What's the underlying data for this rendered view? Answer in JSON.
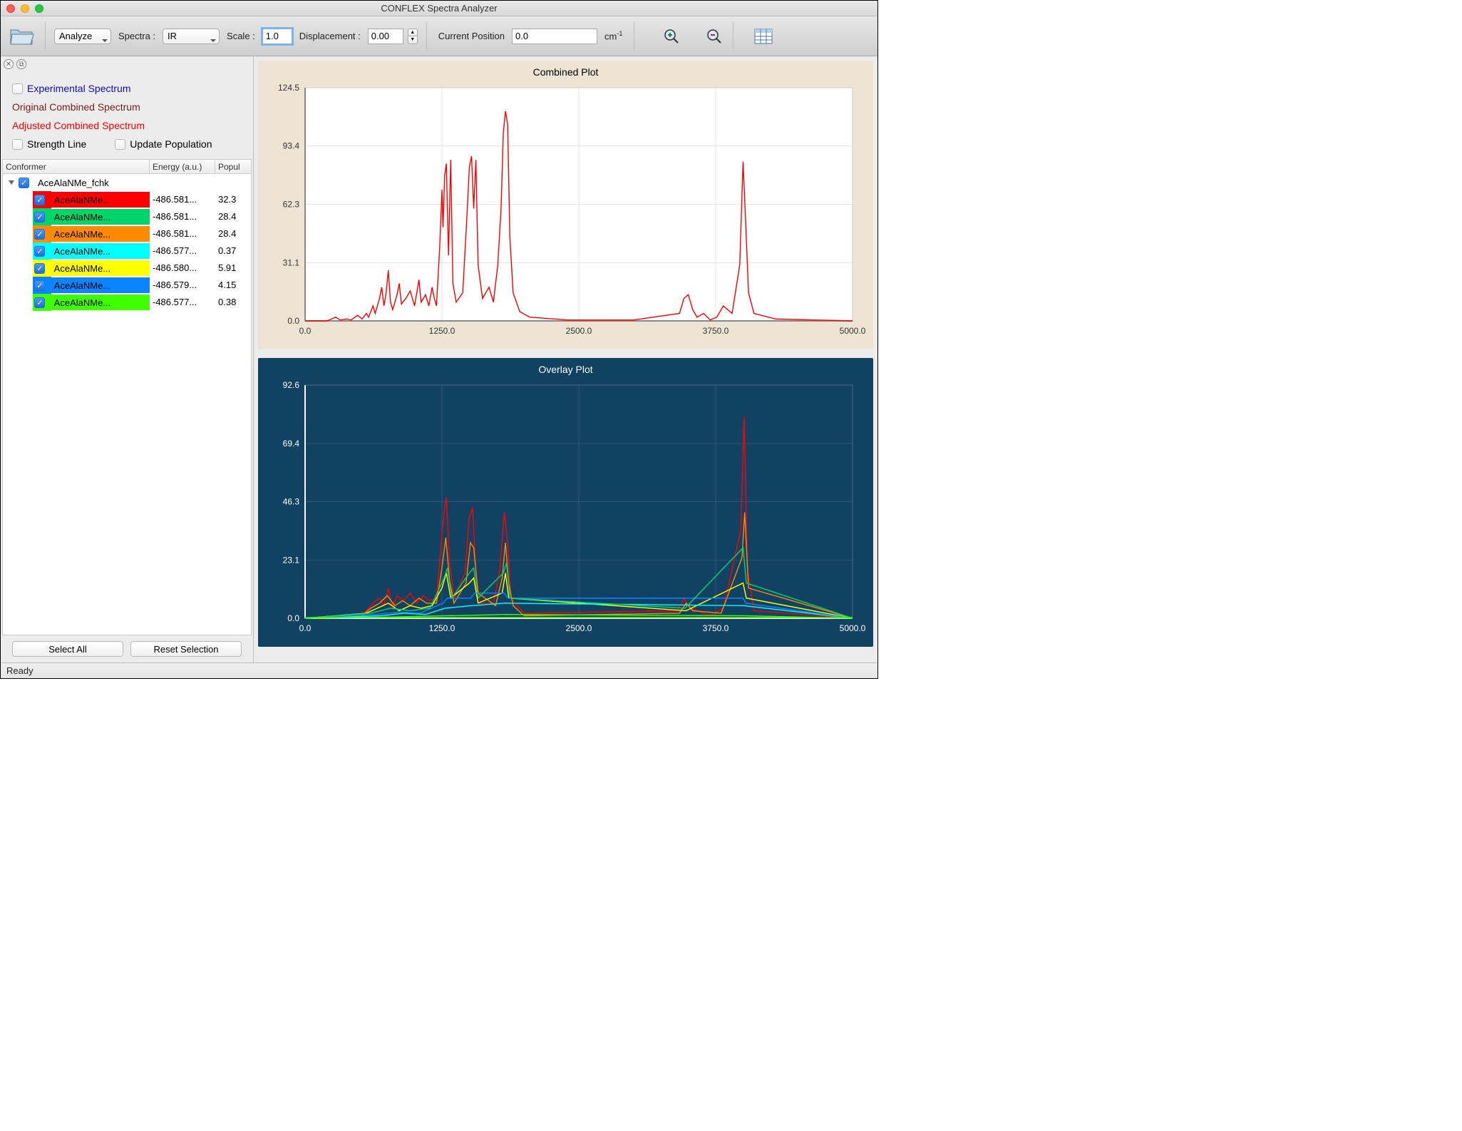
{
  "window": {
    "title": "CONFLEX Spectra Analyzer"
  },
  "toolbar": {
    "analyze_label": "Analyze",
    "spectra_label": "Spectra :",
    "spectra_value": "IR",
    "scale_label": "Scale :",
    "scale_value": "1.0",
    "displacement_label": "Displacement :",
    "displacement_value": "0.00",
    "position_label": "Current Position",
    "position_value": "0.0",
    "unit": "cm",
    "unit_sup": "-1"
  },
  "legend": {
    "experimental": "Experimental Spectrum",
    "original": "Original Combined Spectrum",
    "adjusted": "Adjusted Combined Spectrum",
    "strength_line": "Strength Line",
    "update_population": "Update Population"
  },
  "tree": {
    "header_conformer": "Conformer",
    "header_energy": "Energy (a.u.)",
    "header_pop": "Popul",
    "parent": "AceAlaNMe_fchk",
    "rows": [
      {
        "name": "AceAlaNMe...",
        "energy": "-486.581...",
        "pop": "32.3",
        "color": "#ff0000"
      },
      {
        "name": "AceAlaNMe...",
        "energy": "-486.581...",
        "pop": "28.4",
        "color": "#00d56a"
      },
      {
        "name": "AceAlaNMe...",
        "energy": "-486.581...",
        "pop": "28.4",
        "color": "#ff8900"
      },
      {
        "name": "AceAlaNMe...",
        "energy": "-486.577...",
        "pop": "0.37",
        "color": "#00ffff"
      },
      {
        "name": "AceAlaNMe...",
        "energy": "-486.580...",
        "pop": "5.91",
        "color": "#ffff00"
      },
      {
        "name": "AceAlaNMe...",
        "energy": "-486.579...",
        "pop": "4.15",
        "color": "#0b84ff"
      },
      {
        "name": "AceAlaNMe...",
        "energy": "-486.577...",
        "pop": "0.38",
        "color": "#40ff00"
      }
    ]
  },
  "buttons": {
    "select_all": "Select All",
    "reset_selection": "Reset Selection"
  },
  "status": {
    "text": "Ready"
  },
  "combined_plot": {
    "title": "Combined Plot",
    "type": "line",
    "background_color": "#eee4d4",
    "plot_bg": "#ffffff",
    "grid_color": "#cccccc",
    "axis_color": "#888888",
    "line_color": "#ff0000",
    "xlim": [
      0,
      5000
    ],
    "ylim": [
      0,
      124.5
    ],
    "xticks": [
      0.0,
      1250.0,
      2500.0,
      3750.0,
      5000.0
    ],
    "yticks": [
      0.0,
      31.1,
      62.3,
      93.4,
      124.5
    ],
    "label_fontsize": 12,
    "label_color": "#333333",
    "data": [
      [
        0,
        0
      ],
      [
        200,
        0
      ],
      [
        280,
        2
      ],
      [
        320,
        0.5
      ],
      [
        380,
        1
      ],
      [
        420,
        0.5
      ],
      [
        480,
        3
      ],
      [
        520,
        1
      ],
      [
        560,
        4
      ],
      [
        580,
        2
      ],
      [
        620,
        8
      ],
      [
        640,
        4
      ],
      [
        680,
        12
      ],
      [
        700,
        18
      ],
      [
        720,
        8
      ],
      [
        740,
        15
      ],
      [
        760,
        27
      ],
      [
        780,
        10
      ],
      [
        800,
        6
      ],
      [
        840,
        14
      ],
      [
        860,
        20
      ],
      [
        880,
        9
      ],
      [
        920,
        12
      ],
      [
        960,
        16
      ],
      [
        1000,
        8
      ],
      [
        1040,
        22
      ],
      [
        1060,
        10
      ],
      [
        1100,
        14
      ],
      [
        1130,
        8
      ],
      [
        1160,
        18
      ],
      [
        1180,
        12
      ],
      [
        1200,
        8
      ],
      [
        1230,
        40
      ],
      [
        1250,
        70
      ],
      [
        1260,
        50
      ],
      [
        1275,
        78
      ],
      [
        1290,
        84
      ],
      [
        1310,
        35
      ],
      [
        1330,
        86
      ],
      [
        1350,
        20
      ],
      [
        1380,
        10
      ],
      [
        1440,
        15
      ],
      [
        1480,
        58
      ],
      [
        1500,
        82
      ],
      [
        1520,
        88
      ],
      [
        1540,
        60
      ],
      [
        1560,
        86
      ],
      [
        1580,
        30
      ],
      [
        1620,
        12
      ],
      [
        1680,
        18
      ],
      [
        1720,
        10
      ],
      [
        1760,
        30
      ],
      [
        1790,
        60
      ],
      [
        1810,
        100
      ],
      [
        1830,
        112
      ],
      [
        1850,
        105
      ],
      [
        1870,
        45
      ],
      [
        1900,
        15
      ],
      [
        1960,
        5
      ],
      [
        2050,
        2
      ],
      [
        2400,
        0.5
      ],
      [
        3000,
        0.5
      ],
      [
        3420,
        4
      ],
      [
        3460,
        12
      ],
      [
        3500,
        14
      ],
      [
        3540,
        6
      ],
      [
        3580,
        2
      ],
      [
        3640,
        4
      ],
      [
        3700,
        0.5
      ],
      [
        3760,
        2
      ],
      [
        3820,
        8
      ],
      [
        3900,
        4
      ],
      [
        3970,
        30
      ],
      [
        4000,
        85
      ],
      [
        4020,
        58
      ],
      [
        4050,
        15
      ],
      [
        4100,
        4
      ],
      [
        4300,
        1
      ],
      [
        5000,
        0
      ]
    ]
  },
  "overlay_plot": {
    "title": "Overlay Plot",
    "type": "line",
    "background_color": "#124263",
    "plot_bg": "#124263",
    "grid_color": "#4a6a82",
    "axis_color": "#ffffff",
    "label_color": "#ffffff",
    "xlim": [
      0,
      5000
    ],
    "ylim": [
      0,
      92.6
    ],
    "xticks": [
      0.0,
      1250.0,
      2500.0,
      3750.0,
      5000.0
    ],
    "yticks": [
      0.0,
      23.1,
      46.3,
      69.4,
      92.6
    ],
    "label_fontsize": 12,
    "baseline_color": "#40ff00",
    "series": [
      {
        "color": "#ff0000",
        "data": [
          [
            0,
            0
          ],
          [
            500,
            0.5
          ],
          [
            560,
            3
          ],
          [
            620,
            6
          ],
          [
            680,
            8
          ],
          [
            720,
            5
          ],
          [
            760,
            12
          ],
          [
            800,
            4
          ],
          [
            840,
            9
          ],
          [
            900,
            7
          ],
          [
            960,
            10
          ],
          [
            1020,
            6
          ],
          [
            1080,
            9
          ],
          [
            1140,
            7
          ],
          [
            1200,
            8
          ],
          [
            1240,
            28
          ],
          [
            1270,
            42
          ],
          [
            1290,
            48
          ],
          [
            1320,
            22
          ],
          [
            1360,
            8
          ],
          [
            1460,
            18
          ],
          [
            1500,
            40
          ],
          [
            1530,
            44
          ],
          [
            1560,
            18
          ],
          [
            1600,
            6
          ],
          [
            1720,
            6
          ],
          [
            1780,
            20
          ],
          [
            1820,
            42
          ],
          [
            1850,
            30
          ],
          [
            1880,
            8
          ],
          [
            2000,
            2
          ],
          [
            3400,
            3
          ],
          [
            3460,
            8
          ],
          [
            3520,
            4
          ],
          [
            3700,
            1
          ],
          [
            3820,
            4
          ],
          [
            3980,
            35
          ],
          [
            4010,
            80
          ],
          [
            4040,
            20
          ],
          [
            4100,
            3
          ],
          [
            5000,
            0
          ]
        ]
      },
      {
        "color": "#ff8900",
        "data": [
          [
            0,
            0
          ],
          [
            520,
            1
          ],
          [
            600,
            4
          ],
          [
            680,
            6
          ],
          [
            750,
            9
          ],
          [
            820,
            5
          ],
          [
            890,
            7
          ],
          [
            960,
            5
          ],
          [
            1040,
            8
          ],
          [
            1110,
            6
          ],
          [
            1200,
            6
          ],
          [
            1250,
            20
          ],
          [
            1285,
            32
          ],
          [
            1320,
            15
          ],
          [
            1360,
            6
          ],
          [
            1470,
            14
          ],
          [
            1510,
            30
          ],
          [
            1540,
            28
          ],
          [
            1580,
            10
          ],
          [
            1740,
            5
          ],
          [
            1800,
            16
          ],
          [
            1830,
            30
          ],
          [
            1860,
            14
          ],
          [
            1900,
            5
          ],
          [
            2000,
            1
          ],
          [
            3420,
            2
          ],
          [
            3480,
            6
          ],
          [
            3540,
            3
          ],
          [
            3800,
            2
          ],
          [
            3990,
            24
          ],
          [
            4015,
            42
          ],
          [
            4050,
            12
          ],
          [
            5000,
            0
          ]
        ]
      },
      {
        "color": "#ffff00",
        "data": [
          [
            0,
            0
          ],
          [
            560,
            2
          ],
          [
            660,
            4
          ],
          [
            760,
            6
          ],
          [
            860,
            3
          ],
          [
            960,
            5
          ],
          [
            1060,
            4
          ],
          [
            1160,
            5
          ],
          [
            1250,
            12
          ],
          [
            1290,
            18
          ],
          [
            1330,
            8
          ],
          [
            1500,
            14
          ],
          [
            1540,
            16
          ],
          [
            1580,
            6
          ],
          [
            1800,
            10
          ],
          [
            1830,
            18
          ],
          [
            1860,
            8
          ],
          [
            3480,
            3
          ],
          [
            4000,
            14
          ],
          [
            4030,
            8
          ],
          [
            5000,
            0
          ]
        ]
      },
      {
        "color": "#00ffff",
        "data": [
          [
            0,
            0
          ],
          [
            700,
            1
          ],
          [
            900,
            2
          ],
          [
            1100,
            1.5
          ],
          [
            1280,
            4
          ],
          [
            1520,
            5
          ],
          [
            1820,
            6
          ],
          [
            4005,
            5
          ],
          [
            5000,
            0
          ]
        ]
      },
      {
        "color": "#0b84ff",
        "data": [
          [
            0,
            0
          ],
          [
            650,
            1.5
          ],
          [
            850,
            2.5
          ],
          [
            1050,
            2
          ],
          [
            1260,
            6
          ],
          [
            1300,
            8
          ],
          [
            1510,
            8
          ],
          [
            1550,
            10
          ],
          [
            1820,
            10
          ],
          [
            1850,
            8
          ],
          [
            4000,
            8
          ],
          [
            4025,
            6
          ],
          [
            5000,
            0
          ]
        ]
      },
      {
        "color": "#40ff00",
        "data": [
          [
            0,
            0
          ],
          [
            800,
            0.5
          ],
          [
            1280,
            1
          ],
          [
            1520,
            1.2
          ],
          [
            1830,
            1.5
          ],
          [
            4005,
            1
          ],
          [
            5000,
            0
          ]
        ]
      },
      {
        "color": "#00d56a",
        "data": [
          [
            0,
            0
          ],
          [
            600,
            2
          ],
          [
            780,
            4
          ],
          [
            960,
            3
          ],
          [
            1140,
            4
          ],
          [
            1270,
            16
          ],
          [
            1300,
            20
          ],
          [
            1340,
            8
          ],
          [
            1500,
            18
          ],
          [
            1540,
            20
          ],
          [
            1580,
            8
          ],
          [
            1810,
            18
          ],
          [
            1840,
            22
          ],
          [
            1870,
            8
          ],
          [
            3470,
            4
          ],
          [
            4000,
            28
          ],
          [
            4030,
            14
          ],
          [
            5000,
            0
          ]
        ]
      }
    ]
  }
}
